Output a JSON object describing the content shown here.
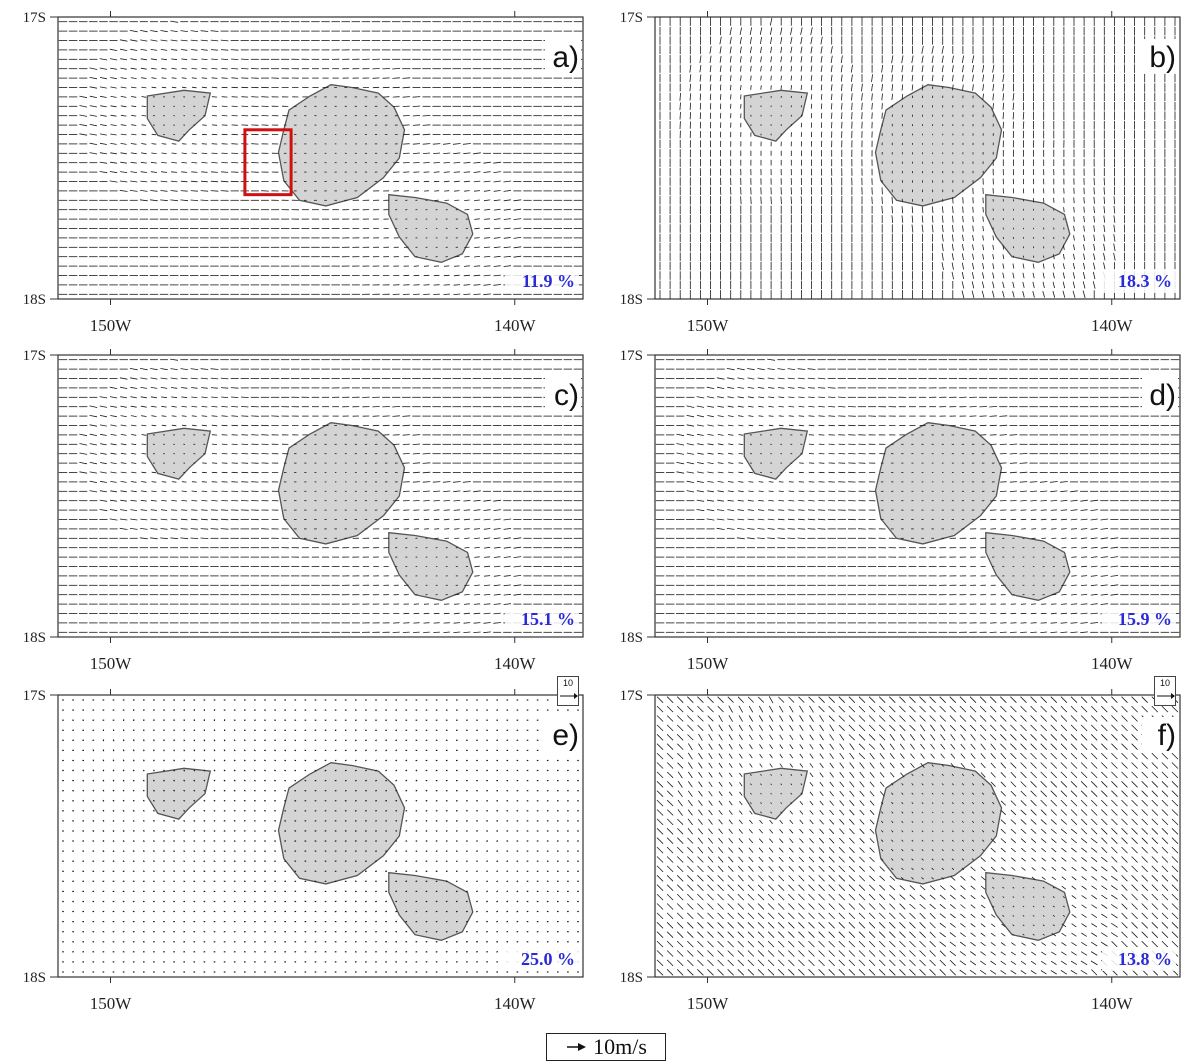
{
  "panels": [
    {
      "id": "a",
      "label": "a)",
      "percent": "11.9 %",
      "wind": [
        1,
        0
      ],
      "dense": true
    },
    {
      "id": "b",
      "label": "b)",
      "percent": "18.3 %",
      "wind": [
        0,
        1
      ],
      "dense": true
    },
    {
      "id": "c",
      "label": "c)",
      "percent": "15.1 %",
      "wind": [
        1,
        0
      ],
      "dense": true
    },
    {
      "id": "d",
      "label": "d)",
      "percent": "15.9 %",
      "wind": [
        1,
        0
      ],
      "dense": true
    },
    {
      "id": "e",
      "label": "e)",
      "percent": "25.0 %",
      "wind": [
        0.2,
        0
      ],
      "dense": false
    },
    {
      "id": "f",
      "label": "f)",
      "percent": "13.8 %",
      "wind": [
        0.7,
        0.7
      ],
      "dense": true
    }
  ],
  "axes": {
    "lat_top": "17S",
    "lat_bottom": "18S",
    "lon_left": "150W",
    "lon_right": "140W"
  },
  "reference_box_label": "10",
  "legend": {
    "label": "10m/s"
  },
  "colors": {
    "land": "#d4d4d4",
    "coast": "#555555",
    "arrow": "#1a1a1a",
    "highlight": "#d01010",
    "percent": "#2a2ad8"
  }
}
